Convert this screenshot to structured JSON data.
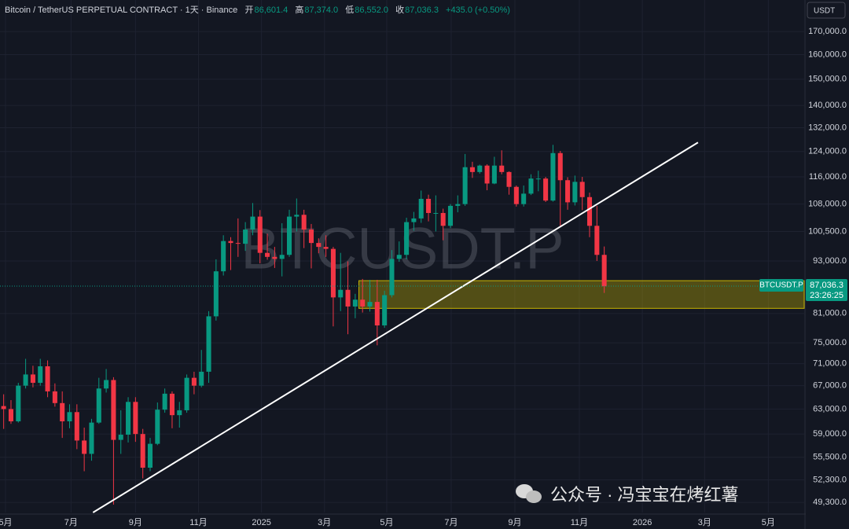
{
  "header": {
    "title": "Bitcoin / TetherUS PERPETUAL CONTRACT · 1天 · Binance",
    "ohlc": [
      {
        "label": "开",
        "value": "86,601.4"
      },
      {
        "label": "高",
        "value": "87,374.0"
      },
      {
        "label": "低",
        "value": "86,552.0"
      },
      {
        "label": "收",
        "value": "87,036.3"
      }
    ],
    "change": "+435.0 (+0.50%)"
  },
  "chart_data": {
    "type": "candlestick",
    "symbol": "BTCUSDT.P",
    "currency": "USDT",
    "log_scale": true,
    "grid": true,
    "up_color": "#089981",
    "down_color": "#f23645",
    "xlim": [
      -0.5,
      109.3
    ],
    "ylim": [
      48000,
      184700
    ],
    "xticks": [
      {
        "value": 0.25,
        "label": "5月"
      },
      {
        "value": 9.2,
        "label": "7月"
      },
      {
        "value": 18,
        "label": "9月"
      },
      {
        "value": 26.6,
        "label": "11月"
      },
      {
        "value": 35.2,
        "label": "2025"
      },
      {
        "value": 43.8,
        "label": "3月"
      },
      {
        "value": 52.3,
        "label": "5月"
      },
      {
        "value": 61.1,
        "label": "7月"
      },
      {
        "value": 69.8,
        "label": "9月"
      },
      {
        "value": 78.6,
        "label": "11月"
      },
      {
        "value": 87.2,
        "label": "2026"
      },
      {
        "value": 95.7,
        "label": "3月"
      },
      {
        "value": 104.4,
        "label": "5月"
      }
    ],
    "yticks": [
      {
        "value": 170000,
        "label": "170,000.0"
      },
      {
        "value": 160000,
        "label": "160,000.0"
      },
      {
        "value": 150000,
        "label": "150,000.0"
      },
      {
        "value": 140000,
        "label": "140,000.0"
      },
      {
        "value": 132000,
        "label": "132,000.0"
      },
      {
        "value": 124000,
        "label": "124,000.0"
      },
      {
        "value": 116000,
        "label": "116,000.0"
      },
      {
        "value": 108000,
        "label": "108,000.0"
      },
      {
        "value": 100500,
        "label": "100,500.0"
      },
      {
        "value": 93000,
        "label": "93,000.0"
      },
      {
        "value": 81000,
        "label": "81,000.0"
      },
      {
        "value": 75000,
        "label": "75,000.0"
      },
      {
        "value": 71000,
        "label": "71,000.0"
      },
      {
        "value": 67000,
        "label": "67,000.0"
      },
      {
        "value": 63000,
        "label": "63,000.0"
      },
      {
        "value": 59000,
        "label": "59,000.0"
      },
      {
        "value": 55500,
        "label": "55,500.0"
      },
      {
        "value": 52300,
        "label": "52,300.0"
      },
      {
        "value": 49300,
        "label": "49,300.0"
      }
    ],
    "open": [
      63500,
      63000,
      61000,
      67000,
      69000,
      67500,
      70500,
      66000,
      64000,
      61000,
      62500,
      58000,
      56000,
      60800,
      66500,
      68000,
      58100,
      58900,
      64200,
      59000,
      54000,
      57500,
      62900,
      65600,
      62000,
      62800,
      68400,
      67000,
      69500,
      80400,
      90500,
      98000,
      97500,
      97300,
      101000,
      104500,
      95000,
      94000,
      93500,
      94500,
      104500,
      105000,
      101000,
      97500,
      96500,
      96000,
      84500,
      86200,
      82500,
      84000,
      82500,
      83500,
      78500,
      85000,
      93500,
      94500,
      103000,
      104000,
      109500,
      105500,
      105500,
      102000,
      107500,
      108000,
      119000,
      117500,
      119500,
      114000,
      119500,
      117500,
      113000,
      108000,
      111000,
      115500,
      115500,
      109000,
      123500,
      115000,
      108500,
      114500,
      110000,
      102000,
      94500
    ],
    "high": [
      65500,
      64500,
      67500,
      71900,
      70600,
      71900,
      71600,
      67400,
      66000,
      63800,
      63800,
      60000,
      61400,
      68400,
      70000,
      68500,
      62800,
      65000,
      65000,
      59800,
      58400,
      64100,
      66500,
      66000,
      64200,
      69000,
      69500,
      73600,
      81500,
      93400,
      99500,
      99000,
      104000,
      103000,
      108300,
      106300,
      99900,
      96500,
      102700,
      106400,
      109600,
      106400,
      102500,
      98700,
      99500,
      96500,
      95000,
      92900,
      85300,
      88700,
      88500,
      88500,
      86000,
      95700,
      97900,
      104200,
      105800,
      111900,
      110700,
      110500,
      106700,
      108000,
      110500,
      123200,
      120700,
      119800,
      119900,
      122300,
      124400,
      117700,
      113400,
      113400,
      116800,
      117900,
      116000,
      126200,
      124200,
      115900,
      116400,
      116000,
      111300,
      107500,
      96600
    ],
    "low": [
      59800,
      60600,
      60800,
      66500,
      66700,
      67000,
      65000,
      63400,
      58400,
      59900,
      56700,
      53500,
      55000,
      60600,
      65800,
      49000,
      56000,
      57700,
      57800,
      52500,
      53500,
      57300,
      62400,
      59900,
      60000,
      62400,
      65500,
      66700,
      67500,
      79500,
      89500,
      90800,
      94000,
      95500,
      99500,
      92400,
      93300,
      91300,
      89300,
      94000,
      100500,
      96200,
      91200,
      94900,
      94000,
      78300,
      81500,
      76700,
      80000,
      81200,
      81400,
      74500,
      78000,
      84500,
      92800,
      93400,
      100700,
      102800,
      103200,
      100500,
      98200,
      101400,
      105700,
      107500,
      115700,
      117000,
      112000,
      113800,
      116800,
      110700,
      107300,
      107300,
      110600,
      111700,
      108600,
      108700,
      102000,
      106400,
      107600,
      106300,
      99000,
      93000,
      85500
    ],
    "close": [
      63000,
      61000,
      67000,
      69000,
      67500,
      70500,
      66000,
      64000,
      61000,
      62500,
      58000,
      56000,
      60800,
      66500,
      68000,
      58100,
      58900,
      64200,
      59000,
      54000,
      57500,
      62900,
      65600,
      62000,
      62800,
      68400,
      67000,
      69500,
      80400,
      90500,
      98000,
      97500,
      97300,
      101000,
      104500,
      95000,
      94000,
      93500,
      94500,
      104500,
      105000,
      101000,
      97500,
      96500,
      96000,
      84500,
      86200,
      82500,
      84000,
      82500,
      83500,
      78500,
      85000,
      93500,
      94500,
      103000,
      104000,
      109500,
      105500,
      105500,
      102000,
      107500,
      108000,
      119000,
      117500,
      119500,
      114000,
      119500,
      117500,
      113000,
      108000,
      111000,
      115500,
      115500,
      109000,
      123500,
      115000,
      108500,
      114500,
      110000,
      102000,
      94500,
      87000
    ],
    "last_price": {
      "value": 87036.3,
      "label": "87,036.3"
    },
    "countdown": "23:26:25",
    "zone": {
      "start": 48.5,
      "top": 88300,
      "bottom": 82100,
      "color": "#c8b400"
    },
    "trendline": {
      "x": [
        12.2,
        94.8
      ],
      "y": [
        48000,
        127000
      ],
      "color": "#ffffff"
    }
  },
  "watermark": "公众号 · 冯宝宝在烤红薯"
}
